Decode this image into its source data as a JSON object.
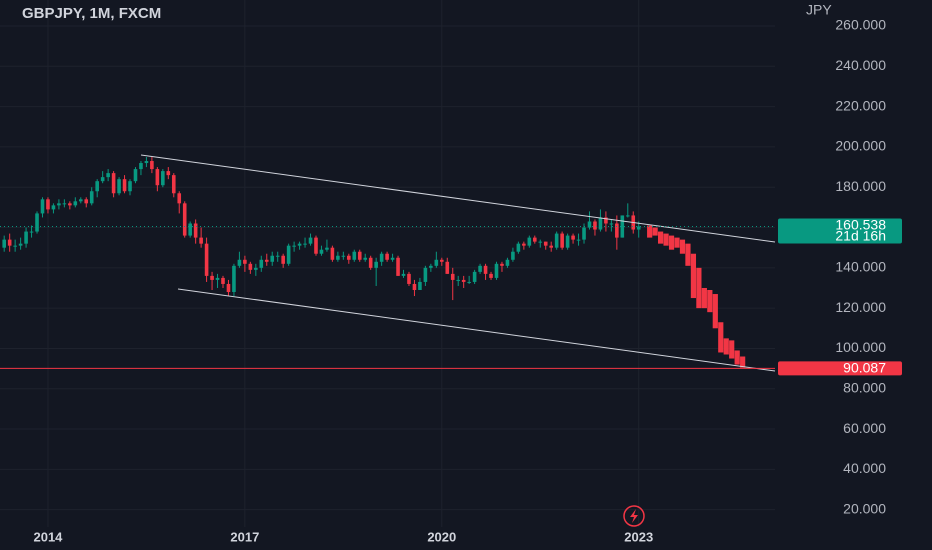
{
  "chart_data": {
    "type": "candlestick",
    "title": "GBPJPY, 1M, FXCM",
    "currency": "JPY",
    "categories": [
      null,
      null,
      null,
      null,
      null,
      null,
      null,
      null,
      "2014",
      null,
      null,
      null,
      null,
      null,
      null,
      null,
      null,
      null,
      null,
      null,
      null,
      null,
      null,
      null,
      null,
      null,
      null,
      null,
      null,
      null,
      null,
      null,
      null,
      null,
      null,
      null,
      null,
      null,
      null,
      null,
      null,
      null,
      null,
      null,
      "2017",
      null,
      null,
      null,
      null,
      null,
      null,
      null,
      null,
      null,
      null,
      null,
      null,
      null,
      null,
      null,
      null,
      null,
      null,
      null,
      null,
      null,
      null,
      null,
      null,
      null,
      null,
      null,
      null,
      null,
      null,
      null,
      null,
      null,
      null,
      null,
      "2020",
      null,
      null,
      null,
      null,
      null,
      null,
      null,
      null,
      null,
      null,
      null,
      null,
      null,
      null,
      null,
      null,
      null,
      null,
      null,
      null,
      null,
      null,
      null,
      null,
      null,
      null,
      null,
      null,
      null,
      null,
      null,
      null,
      null,
      null,
      null,
      "2023"
    ],
    "open": [
      150,
      154,
      151,
      151,
      152,
      158,
      158,
      167,
      174,
      169,
      171,
      172,
      172,
      171,
      173,
      174,
      172,
      178,
      183,
      185,
      187,
      177,
      184,
      178,
      183,
      189,
      192,
      193,
      189,
      181,
      188,
      186,
      177,
      172,
      156,
      162,
      155,
      152,
      136,
      134,
      135,
      132,
      128,
      141,
      144,
      142,
      139,
      140,
      144,
      143,
      146,
      146,
      142,
      151,
      151,
      152,
      152,
      155,
      147,
      149,
      150,
      144,
      146,
      146,
      144,
      148,
      144,
      145,
      140,
      143,
      147,
      144,
      145,
      136,
      137,
      132,
      129,
      133,
      140,
      141,
      144,
      143,
      137,
      134,
      134,
      133,
      133,
      138,
      141,
      137,
      135,
      142,
      141,
      144,
      148,
      152,
      151,
      155,
      153,
      153,
      151,
      150,
      157,
      150,
      156,
      154,
      154,
      160,
      163,
      159,
      165,
      162,
      162,
      155,
      166,
      166,
      159
    ],
    "high": [
      156,
      157,
      154,
      155,
      160,
      161,
      168,
      175,
      175,
      172,
      174,
      174,
      173,
      175,
      175,
      175,
      180,
      184,
      188,
      189,
      188,
      185,
      186,
      184,
      190,
      193,
      195,
      195,
      190,
      189,
      190,
      187,
      178,
      173,
      163,
      164,
      160,
      155,
      138,
      137,
      136,
      134,
      142,
      148,
      146,
      143,
      142,
      146,
      147,
      148,
      148,
      147,
      152,
      153,
      153,
      155,
      157,
      156,
      151,
      154,
      151,
      148,
      148,
      147,
      149,
      149,
      147,
      146,
      145,
      148,
      148,
      147,
      146,
      139,
      138,
      134,
      135,
      141,
      142,
      148,
      145,
      145,
      140,
      136,
      136,
      136,
      139,
      142,
      142,
      138,
      143,
      143,
      145,
      150,
      153,
      153,
      156,
      156,
      154,
      153,
      153,
      158,
      158,
      157,
      157,
      157,
      162,
      168,
      164,
      169,
      168,
      164,
      166,
      166,
      172,
      168,
      163
    ],
    "low": [
      148,
      148,
      148,
      149,
      150,
      155,
      157,
      165,
      167,
      167,
      169,
      170,
      169,
      170,
      172,
      170,
      171,
      175,
      182,
      183,
      175,
      176,
      177,
      176,
      182,
      186,
      190,
      187,
      178,
      180,
      184,
      175,
      167,
      155,
      155,
      152,
      150,
      133,
      129,
      130,
      130,
      126,
      126,
      140,
      138,
      137,
      136,
      138,
      141,
      141,
      143,
      140,
      141,
      148,
      149,
      150,
      151,
      146,
      146,
      148,
      143,
      143,
      144,
      142,
      143,
      143,
      143,
      139,
      131,
      141,
      143,
      143,
      136,
      135,
      131,
      126,
      130,
      131,
      138,
      140,
      141,
      137,
      124,
      131,
      130,
      132,
      132,
      137,
      134,
      134,
      134,
      138,
      140,
      143,
      147,
      149,
      150,
      152,
      150,
      149,
      148,
      149,
      149,
      149,
      152,
      151,
      152,
      159,
      156,
      158,
      158,
      158,
      149,
      155,
      165,
      157,
      155
    ],
    "close": [
      154,
      151,
      151,
      152,
      158,
      158,
      167,
      174,
      169,
      171,
      172,
      172,
      171,
      173,
      174,
      172,
      178,
      183,
      185,
      187,
      177,
      184,
      178,
      183,
      189,
      192,
      193,
      189,
      181,
      188,
      186,
      177,
      172,
      156,
      162,
      155,
      152,
      136,
      134,
      135,
      132,
      128,
      141,
      144,
      142,
      139,
      140,
      144,
      143,
      146,
      146,
      142,
      151,
      151,
      152,
      152,
      155,
      147,
      149,
      150,
      144,
      146,
      146,
      144,
      148,
      144,
      145,
      140,
      143,
      147,
      144,
      145,
      136,
      137,
      132,
      129,
      133,
      140,
      141,
      144,
      143,
      137,
      134,
      134,
      133,
      133,
      138,
      141,
      137,
      135,
      142,
      141,
      144,
      148,
      152,
      151,
      155,
      153,
      153,
      151,
      150,
      157,
      150,
      156,
      154,
      154,
      160,
      163,
      159,
      165,
      162,
      162,
      155,
      166,
      166,
      159,
      160.538
    ],
    "up_color": "#089981",
    "down_color": "#f23645",
    "countdown": "21d 16h",
    "projection": {
      "color": "#f23645",
      "open": [
        161,
        160,
        158,
        157,
        156,
        155,
        154,
        152,
        147,
        140,
        130,
        129,
        127,
        113,
        105,
        104,
        99,
        96
      ],
      "close": [
        155,
        156,
        152,
        151,
        149,
        150,
        147,
        141,
        125,
        120,
        120,
        118,
        110,
        98,
        97,
        95,
        92,
        90.5
      ]
    },
    "level": 90.087,
    "level_color": "#f23645",
    "ylim": [
      11.4,
      272.9
    ],
    "yticks": [
      {
        "value": 20,
        "label": "20.000"
      },
      {
        "value": 40,
        "label": "40.000"
      },
      {
        "value": 60,
        "label": "60.000"
      },
      {
        "value": 80,
        "label": "80.000"
      },
      {
        "value": 100,
        "label": "100.000"
      },
      {
        "value": 120,
        "label": "120.000"
      },
      {
        "value": 140,
        "label": "140.000"
      },
      {
        "value": 160,
        "label": "160.000"
      },
      {
        "value": 180,
        "label": "180.000"
      },
      {
        "value": 200,
        "label": "200.000"
      },
      {
        "value": 220,
        "label": "220.000"
      },
      {
        "value": 240,
        "label": "240.000"
      },
      {
        "value": 260,
        "label": "260.000"
      }
    ],
    "grid": true
  }
}
